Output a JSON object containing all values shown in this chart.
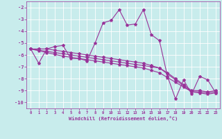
{
  "title": "",
  "xlabel": "Windchill (Refroidissement éolien,°C)",
  "bg_color": "#c8ecec",
  "line_color": "#993399",
  "grid_color": "#ffffff",
  "xlim": [
    -0.5,
    23.5
  ],
  "ylim": [
    -10.5,
    -1.5
  ],
  "yticks": [
    -10,
    -9,
    -8,
    -7,
    -6,
    -5,
    -4,
    -3,
    -2
  ],
  "xticks": [
    0,
    1,
    2,
    3,
    4,
    5,
    6,
    7,
    8,
    9,
    10,
    11,
    12,
    13,
    14,
    15,
    16,
    17,
    18,
    19,
    20,
    21,
    22,
    23
  ],
  "series": [
    [
      0,
      1,
      2,
      3,
      4,
      5,
      6,
      7,
      8,
      9,
      10,
      11,
      12,
      13,
      14,
      15,
      16,
      17,
      18,
      19,
      20,
      21,
      22,
      23
    ],
    [
      -5.5,
      -6.7,
      -5.5,
      -5.3,
      -5.2,
      -6.3,
      -6.3,
      -6.5,
      -5.0,
      -3.3,
      -3.1,
      -2.2,
      -3.5,
      -3.4,
      -2.2,
      -4.3,
      -4.8,
      -7.8,
      -9.7,
      -8.1,
      -9.3,
      -7.8,
      -8.1,
      -9.2
    ],
    [
      -5.5,
      -5.6,
      -5.7,
      -5.8,
      -5.9,
      -6.0,
      -6.1,
      -6.2,
      -6.3,
      -6.4,
      -6.5,
      -6.6,
      -6.7,
      -6.8,
      -6.9,
      -7.0,
      -7.1,
      -7.6,
      -8.1,
      -8.6,
      -9.1,
      -9.2,
      -9.3,
      -9.2
    ],
    [
      -5.5,
      -5.65,
      -5.8,
      -5.95,
      -6.1,
      -6.2,
      -6.3,
      -6.4,
      -6.5,
      -6.6,
      -6.7,
      -6.8,
      -6.9,
      -7.0,
      -7.1,
      -7.3,
      -7.5,
      -7.9,
      -8.3,
      -8.7,
      -9.1,
      -9.1,
      -9.2,
      -9.1
    ],
    [
      -5.5,
      -5.5,
      -5.5,
      -5.6,
      -5.7,
      -5.8,
      -5.9,
      -6.0,
      -6.1,
      -6.2,
      -6.3,
      -6.4,
      -6.5,
      -6.6,
      -6.7,
      -6.9,
      -7.1,
      -7.5,
      -8.0,
      -8.5,
      -9.0,
      -9.0,
      -9.1,
      -9.0
    ]
  ],
  "marker": "*",
  "markersize": 3,
  "linewidth": 0.8
}
